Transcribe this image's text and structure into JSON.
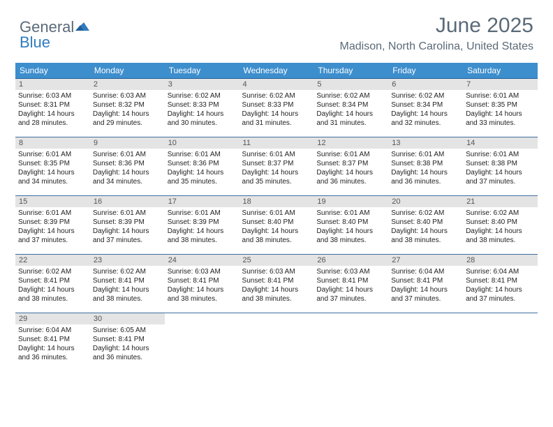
{
  "brand": {
    "word1": "General",
    "word2": "Blue",
    "tri_color": "#2f7bbf",
    "text_color": "#5a6a78"
  },
  "header": {
    "title": "June 2025",
    "location": "Madison, North Carolina, United States"
  },
  "style": {
    "header_bg": "#3d8ecd",
    "header_fg": "#ffffff",
    "daynum_bg": "#e4e4e4",
    "row_border": "#3d6d9e",
    "title_fontsize": 30,
    "subtitle_fontsize": 16,
    "col_count": 7
  },
  "weekdays": [
    "Sunday",
    "Monday",
    "Tuesday",
    "Wednesday",
    "Thursday",
    "Friday",
    "Saturday"
  ],
  "days": [
    {
      "n": "1",
      "sr": "6:03 AM",
      "ss": "8:31 PM",
      "dl": "14 hours and 28 minutes."
    },
    {
      "n": "2",
      "sr": "6:03 AM",
      "ss": "8:32 PM",
      "dl": "14 hours and 29 minutes."
    },
    {
      "n": "3",
      "sr": "6:02 AM",
      "ss": "8:33 PM",
      "dl": "14 hours and 30 minutes."
    },
    {
      "n": "4",
      "sr": "6:02 AM",
      "ss": "8:33 PM",
      "dl": "14 hours and 31 minutes."
    },
    {
      "n": "5",
      "sr": "6:02 AM",
      "ss": "8:34 PM",
      "dl": "14 hours and 31 minutes."
    },
    {
      "n": "6",
      "sr": "6:02 AM",
      "ss": "8:34 PM",
      "dl": "14 hours and 32 minutes."
    },
    {
      "n": "7",
      "sr": "6:01 AM",
      "ss": "8:35 PM",
      "dl": "14 hours and 33 minutes."
    },
    {
      "n": "8",
      "sr": "6:01 AM",
      "ss": "8:35 PM",
      "dl": "14 hours and 34 minutes."
    },
    {
      "n": "9",
      "sr": "6:01 AM",
      "ss": "8:36 PM",
      "dl": "14 hours and 34 minutes."
    },
    {
      "n": "10",
      "sr": "6:01 AM",
      "ss": "8:36 PM",
      "dl": "14 hours and 35 minutes."
    },
    {
      "n": "11",
      "sr": "6:01 AM",
      "ss": "8:37 PM",
      "dl": "14 hours and 35 minutes."
    },
    {
      "n": "12",
      "sr": "6:01 AM",
      "ss": "8:37 PM",
      "dl": "14 hours and 36 minutes."
    },
    {
      "n": "13",
      "sr": "6:01 AM",
      "ss": "8:38 PM",
      "dl": "14 hours and 36 minutes."
    },
    {
      "n": "14",
      "sr": "6:01 AM",
      "ss": "8:38 PM",
      "dl": "14 hours and 37 minutes."
    },
    {
      "n": "15",
      "sr": "6:01 AM",
      "ss": "8:39 PM",
      "dl": "14 hours and 37 minutes."
    },
    {
      "n": "16",
      "sr": "6:01 AM",
      "ss": "8:39 PM",
      "dl": "14 hours and 37 minutes."
    },
    {
      "n": "17",
      "sr": "6:01 AM",
      "ss": "8:39 PM",
      "dl": "14 hours and 38 minutes."
    },
    {
      "n": "18",
      "sr": "6:01 AM",
      "ss": "8:40 PM",
      "dl": "14 hours and 38 minutes."
    },
    {
      "n": "19",
      "sr": "6:01 AM",
      "ss": "8:40 PM",
      "dl": "14 hours and 38 minutes."
    },
    {
      "n": "20",
      "sr": "6:02 AM",
      "ss": "8:40 PM",
      "dl": "14 hours and 38 minutes."
    },
    {
      "n": "21",
      "sr": "6:02 AM",
      "ss": "8:40 PM",
      "dl": "14 hours and 38 minutes."
    },
    {
      "n": "22",
      "sr": "6:02 AM",
      "ss": "8:41 PM",
      "dl": "14 hours and 38 minutes."
    },
    {
      "n": "23",
      "sr": "6:02 AM",
      "ss": "8:41 PM",
      "dl": "14 hours and 38 minutes."
    },
    {
      "n": "24",
      "sr": "6:03 AM",
      "ss": "8:41 PM",
      "dl": "14 hours and 38 minutes."
    },
    {
      "n": "25",
      "sr": "6:03 AM",
      "ss": "8:41 PM",
      "dl": "14 hours and 38 minutes."
    },
    {
      "n": "26",
      "sr": "6:03 AM",
      "ss": "8:41 PM",
      "dl": "14 hours and 37 minutes."
    },
    {
      "n": "27",
      "sr": "6:04 AM",
      "ss": "8:41 PM",
      "dl": "14 hours and 37 minutes."
    },
    {
      "n": "28",
      "sr": "6:04 AM",
      "ss": "8:41 PM",
      "dl": "14 hours and 37 minutes."
    },
    {
      "n": "29",
      "sr": "6:04 AM",
      "ss": "8:41 PM",
      "dl": "14 hours and 36 minutes."
    },
    {
      "n": "30",
      "sr": "6:05 AM",
      "ss": "8:41 PM",
      "dl": "14 hours and 36 minutes."
    }
  ],
  "labels": {
    "sunrise": "Sunrise:",
    "sunset": "Sunset:",
    "daylight": "Daylight:"
  }
}
